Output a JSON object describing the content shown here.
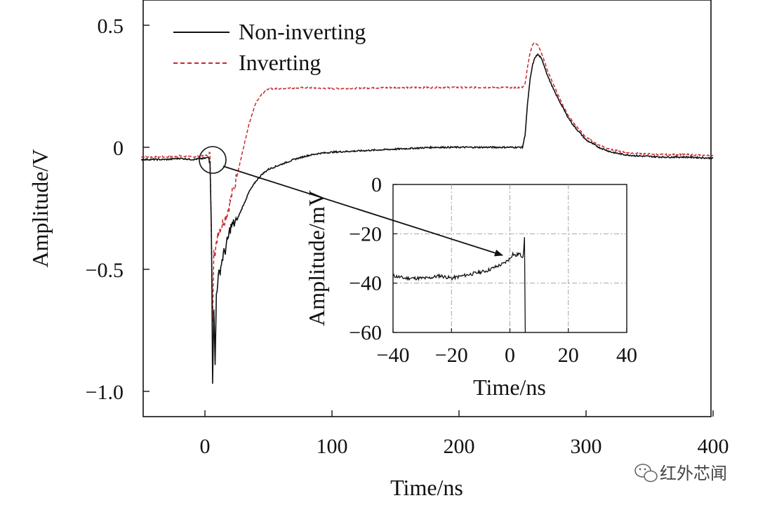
{
  "chart_data": [
    {
      "id": "main",
      "type": "line",
      "xlabel": "Time/ns",
      "ylabel": "Amplitude/V",
      "xlim": [
        -50,
        400
      ],
      "ylim": [
        -1.1,
        0.6
      ],
      "xticks": [
        0,
        100,
        200,
        300,
        400
      ],
      "xtick_labels": [
        "0",
        "100",
        "200",
        "300",
        "400"
      ],
      "yticks": [
        0.5,
        0,
        -0.5,
        -1.0
      ],
      "ytick_labels": [
        "0.5",
        "0",
        "−0.5",
        "−1.0"
      ],
      "grid": false,
      "legend_position": "top-left",
      "series": [
        {
          "name": "Non-inverting",
          "color": "#111111",
          "style": "solid",
          "x": [
            -50,
            -40,
            -30,
            -20,
            -10,
            0,
            4,
            5,
            6,
            7,
            8,
            9,
            10,
            12,
            14,
            16,
            18,
            20,
            25,
            30,
            35,
            40,
            45,
            50,
            60,
            70,
            80,
            90,
            100,
            120,
            140,
            160,
            180,
            200,
            220,
            240,
            250,
            252,
            254,
            256,
            258,
            260,
            262,
            264,
            266,
            268,
            270,
            275,
            280,
            285,
            290,
            295,
            300,
            310,
            320,
            330,
            340,
            360,
            380,
            400
          ],
          "y": [
            -0.05,
            -0.05,
            -0.05,
            -0.045,
            -0.05,
            -0.045,
            -0.04,
            -0.3,
            -0.95,
            -0.65,
            -0.9,
            -0.6,
            -0.55,
            -0.5,
            -0.45,
            -0.42,
            -0.38,
            -0.33,
            -0.3,
            -0.24,
            -0.18,
            -0.14,
            -0.11,
            -0.09,
            -0.07,
            -0.05,
            -0.035,
            -0.025,
            -0.02,
            -0.015,
            -0.01,
            -0.005,
            0.0,
            0.0,
            0.0,
            0.0,
            0.0,
            0.05,
            0.18,
            0.28,
            0.34,
            0.37,
            0.38,
            0.37,
            0.35,
            0.32,
            0.29,
            0.23,
            0.18,
            0.13,
            0.09,
            0.06,
            0.03,
            0.0,
            -0.02,
            -0.03,
            -0.035,
            -0.04,
            -0.04,
            -0.045
          ]
        },
        {
          "name": "Inverting",
          "color": "#c8282b",
          "style": "dashed",
          "x": [
            -50,
            -40,
            -30,
            -20,
            -10,
            0,
            4,
            5,
            6,
            7,
            8,
            10,
            12,
            15,
            18,
            20,
            25,
            30,
            35,
            40,
            45,
            50,
            60,
            80,
            100,
            150,
            200,
            240,
            250,
            252,
            254,
            256,
            258,
            260,
            262,
            264,
            266,
            268,
            270,
            275,
            280,
            285,
            290,
            295,
            300,
            310,
            320,
            330,
            340,
            360,
            380,
            400
          ],
          "y": [
            -0.04,
            -0.04,
            -0.04,
            -0.035,
            -0.04,
            -0.035,
            -0.03,
            -0.35,
            -0.7,
            -0.4,
            -0.45,
            -0.35,
            -0.33,
            -0.3,
            -0.26,
            -0.22,
            -0.12,
            -0.01,
            0.1,
            0.18,
            0.22,
            0.24,
            0.24,
            0.245,
            0.24,
            0.245,
            0.245,
            0.245,
            0.245,
            0.26,
            0.33,
            0.39,
            0.42,
            0.43,
            0.42,
            0.4,
            0.37,
            0.34,
            0.31,
            0.25,
            0.19,
            0.14,
            0.1,
            0.07,
            0.04,
            0.01,
            -0.01,
            -0.02,
            -0.025,
            -0.03,
            -0.03,
            -0.035
          ]
        }
      ]
    },
    {
      "id": "inset",
      "type": "line",
      "xlabel": "Time/ns",
      "ylabel": "Amplitude/mV",
      "xlim": [
        -40,
        40
      ],
      "ylim": [
        -60,
        0
      ],
      "xticks": [
        -40,
        -20,
        0,
        20,
        40
      ],
      "xtick_labels": [
        "−40",
        "−20",
        "0",
        "20",
        "40"
      ],
      "yticks": [
        0,
        -20,
        -40,
        -60
      ],
      "ytick_labels": [
        "0",
        "−20",
        "−40",
        "−60"
      ],
      "grid": true,
      "series": [
        {
          "name": "Non-inverting",
          "color": "#111111",
          "style": "solid",
          "x": [
            -40,
            -36,
            -32,
            -28,
            -24,
            -20,
            -16,
            -12,
            -8,
            -6,
            -4,
            -2,
            0,
            1,
            2,
            3,
            4,
            4.5,
            5,
            5.2,
            5.3
          ],
          "y": [
            -37,
            -38,
            -38,
            -38,
            -37,
            -38,
            -37,
            -36,
            -35,
            -34,
            -33,
            -32,
            -30,
            -28,
            -29,
            -28,
            -29,
            -29,
            -22,
            -60,
            -60
          ]
        }
      ],
      "annotation": "arrow from the circled region near t = 0 on the main plot to the inset trace"
    }
  ],
  "watermark": {
    "text": "红外芯闻",
    "icon": "wechat-icon"
  }
}
